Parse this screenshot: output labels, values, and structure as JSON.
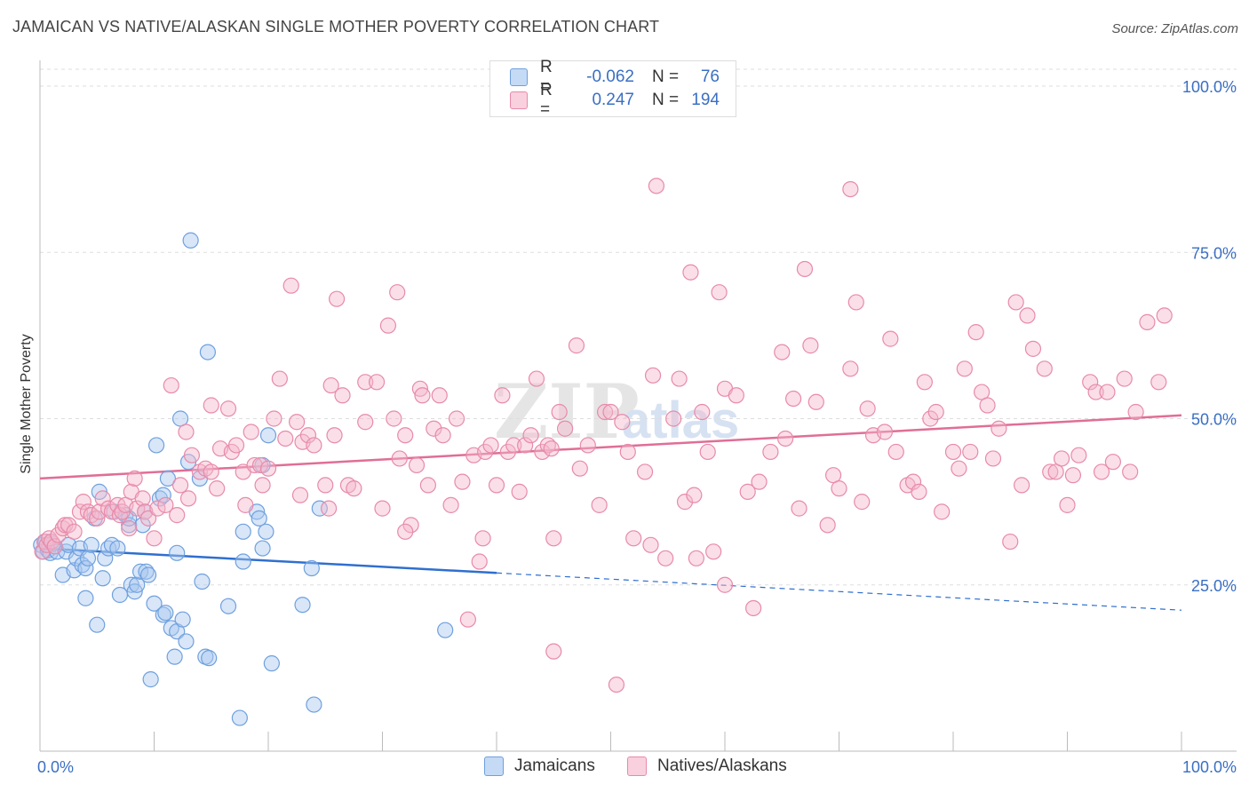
{
  "title": "JAMAICAN VS NATIVE/ALASKAN SINGLE MOTHER POVERTY CORRELATION CHART",
  "source": "Source: ZipAtlas.com",
  "watermark": "ZIPatlas",
  "legend": {
    "rows": [
      {
        "r_label": "R =",
        "r_value": "-0.062",
        "n_label": "N =",
        "n_value": "76",
        "color": "#a8c8f0"
      },
      {
        "r_label": "R =",
        "r_value": "0.247",
        "n_label": "N =",
        "n_value": "194",
        "color": "#f5b8cc"
      }
    ]
  },
  "chart_data": {
    "type": "scatter",
    "title": "JAMAICAN VS NATIVE/ALASKAN SINGLE MOTHER POVERTY CORRELATION CHART",
    "xlabel": "",
    "ylabel": "Single Mother Poverty",
    "xlim": [
      0,
      100
    ],
    "ylim": [
      0,
      100
    ],
    "x_tick_labels": [
      "0.0%",
      "100.0%"
    ],
    "y_tick_labels": [
      "25.0%",
      "50.0%",
      "75.0%",
      "100.0%"
    ],
    "y_ticks": [
      25,
      50,
      75,
      100
    ],
    "grid": true,
    "legend_position": "bottom",
    "series": [
      {
        "name": "Jamaicans",
        "color": "#6fa0de",
        "fill": "#a8c8f0",
        "trend": {
          "x": [
            0,
            40,
            100
          ],
          "y": [
            30.5,
            26.8,
            21.2
          ],
          "solid_until": 40
        },
        "points": [
          [
            0.1,
            31
          ],
          [
            0.3,
            30
          ],
          [
            0.5,
            31.5
          ],
          [
            0.7,
            30.2
          ],
          [
            0.9,
            29.8
          ],
          [
            1.1,
            31.2
          ],
          [
            1.5,
            30
          ],
          [
            2,
            26.5
          ],
          [
            2.3,
            30
          ],
          [
            2.5,
            31
          ],
          [
            3,
            27.2
          ],
          [
            3.2,
            29
          ],
          [
            3.5,
            30.5
          ],
          [
            3.7,
            28
          ],
          [
            4,
            27.5
          ],
          [
            4,
            23
          ],
          [
            4.2,
            29
          ],
          [
            4.5,
            31
          ],
          [
            4.8,
            35
          ],
          [
            5,
            19
          ],
          [
            5.2,
            39
          ],
          [
            5.5,
            26
          ],
          [
            5.7,
            29
          ],
          [
            6,
            30.5
          ],
          [
            6.3,
            31
          ],
          [
            6.5,
            36
          ],
          [
            6.8,
            30.5
          ],
          [
            7,
            23.5
          ],
          [
            7.5,
            35.5
          ],
          [
            7.8,
            34
          ],
          [
            7.8,
            35
          ],
          [
            8,
            25
          ],
          [
            8.3,
            24
          ],
          [
            8.5,
            25
          ],
          [
            8.8,
            27
          ],
          [
            9,
            34
          ],
          [
            9.2,
            36
          ],
          [
            9.3,
            27
          ],
          [
            9.5,
            26.5
          ],
          [
            9.7,
            10.8
          ],
          [
            10,
            22.2
          ],
          [
            10.2,
            46
          ],
          [
            10.5,
            38
          ],
          [
            10.8,
            38.5
          ],
          [
            10.8,
            20.5
          ],
          [
            11,
            20.8
          ],
          [
            11.2,
            41
          ],
          [
            11.5,
            18.5
          ],
          [
            11.8,
            14.2
          ],
          [
            12,
            18
          ],
          [
            12,
            29.8
          ],
          [
            12.3,
            50
          ],
          [
            12.5,
            19.8
          ],
          [
            12.8,
            16.5
          ],
          [
            13,
            43.5
          ],
          [
            13.2,
            76.8
          ],
          [
            14,
            41
          ],
          [
            14.2,
            25.5
          ],
          [
            14.5,
            14.2
          ],
          [
            14.7,
            60
          ],
          [
            14.8,
            14
          ],
          [
            16.5,
            21.8
          ],
          [
            17.5,
            5
          ],
          [
            17.8,
            33
          ],
          [
            17.8,
            28.5
          ],
          [
            19,
            36
          ],
          [
            19.2,
            35
          ],
          [
            19.5,
            30.5
          ],
          [
            19.5,
            43
          ],
          [
            19.8,
            33
          ],
          [
            20,
            47.5
          ],
          [
            20.3,
            13.2
          ],
          [
            23,
            22
          ],
          [
            23.8,
            27.5
          ],
          [
            24,
            7
          ],
          [
            24.5,
            36.5
          ],
          [
            35.5,
            18.2
          ]
        ]
      },
      {
        "name": "Natives/Alaskans",
        "color": "#e88aaa",
        "fill": "#f5b8cc",
        "trend": {
          "x": [
            0,
            100
          ],
          "y": [
            41,
            50.5
          ]
        },
        "points": [
          [
            0.2,
            30
          ],
          [
            0.4,
            31.5
          ],
          [
            0.6,
            31
          ],
          [
            0.8,
            32
          ],
          [
            1,
            31.5
          ],
          [
            1.3,
            30.8
          ],
          [
            1.6,
            32.5
          ],
          [
            2,
            33.5
          ],
          [
            2.2,
            34
          ],
          [
            2.5,
            34
          ],
          [
            3,
            33
          ],
          [
            3.5,
            36
          ],
          [
            3.8,
            37.5
          ],
          [
            4.2,
            36
          ],
          [
            4.5,
            35.5
          ],
          [
            5,
            35
          ],
          [
            5.2,
            36
          ],
          [
            5.5,
            38
          ],
          [
            6,
            36.5
          ],
          [
            6.3,
            36
          ],
          [
            6.8,
            37
          ],
          [
            7,
            35.5
          ],
          [
            7.2,
            36
          ],
          [
            7.5,
            37
          ],
          [
            7.8,
            33.5
          ],
          [
            8,
            39
          ],
          [
            8.3,
            41
          ],
          [
            8.5,
            36.5
          ],
          [
            9,
            38
          ],
          [
            9.2,
            36
          ],
          [
            9.5,
            35
          ],
          [
            10,
            32
          ],
          [
            10.3,
            36.5
          ],
          [
            11,
            37
          ],
          [
            11.5,
            55
          ],
          [
            12,
            35.5
          ],
          [
            12.3,
            40
          ],
          [
            12.8,
            48
          ],
          [
            13,
            38
          ],
          [
            13.3,
            44.5
          ],
          [
            14,
            42
          ],
          [
            14.5,
            42.5
          ],
          [
            15,
            52
          ],
          [
            15,
            42
          ],
          [
            15.5,
            39.5
          ],
          [
            15.8,
            45.5
          ],
          [
            16.5,
            51.5
          ],
          [
            16.8,
            45
          ],
          [
            17.2,
            46
          ],
          [
            17.8,
            42
          ],
          [
            18,
            37
          ],
          [
            18.5,
            48
          ],
          [
            18.8,
            43
          ],
          [
            19.3,
            43
          ],
          [
            19.5,
            40
          ],
          [
            20,
            42.5
          ],
          [
            20.5,
            50
          ],
          [
            21,
            56
          ],
          [
            21.5,
            47
          ],
          [
            22,
            70
          ],
          [
            22.5,
            49.5
          ],
          [
            22.8,
            38.5
          ],
          [
            23,
            46.5
          ],
          [
            23.5,
            47.5
          ],
          [
            24,
            46
          ],
          [
            25,
            40
          ],
          [
            25.3,
            36.5
          ],
          [
            25.5,
            55
          ],
          [
            25.8,
            47.5
          ],
          [
            26,
            68
          ],
          [
            26.5,
            53.5
          ],
          [
            27,
            40
          ],
          [
            27.5,
            39.5
          ],
          [
            28.5,
            49.5
          ],
          [
            28.5,
            55.5
          ],
          [
            29.5,
            55.5
          ],
          [
            30,
            36.5
          ],
          [
            30.5,
            64
          ],
          [
            31,
            50
          ],
          [
            31.3,
            69
          ],
          [
            31.5,
            44
          ],
          [
            32,
            47.5
          ],
          [
            32.5,
            34
          ],
          [
            33,
            43
          ],
          [
            33.3,
            54.5
          ],
          [
            33.5,
            53.5
          ],
          [
            34,
            40
          ],
          [
            34.5,
            48.5
          ],
          [
            35,
            53.5
          ],
          [
            35.3,
            47.5
          ],
          [
            36,
            37
          ],
          [
            36.5,
            50
          ],
          [
            37,
            40.5
          ],
          [
            38,
            44.5
          ],
          [
            38.5,
            28.5
          ],
          [
            38.8,
            32
          ],
          [
            39,
            45
          ],
          [
            39.5,
            46
          ],
          [
            40,
            40
          ],
          [
            40.5,
            53.5
          ],
          [
            41,
            45
          ],
          [
            41.5,
            46
          ],
          [
            42,
            39
          ],
          [
            42.5,
            46
          ],
          [
            43,
            47.5
          ],
          [
            43.5,
            56
          ],
          [
            44,
            45
          ],
          [
            44.5,
            46
          ],
          [
            44.8,
            45.5
          ],
          [
            45,
            32
          ],
          [
            45.5,
            51
          ],
          [
            46,
            48.5
          ],
          [
            47,
            61
          ],
          [
            47.3,
            42.5
          ],
          [
            48,
            46
          ],
          [
            49,
            37
          ],
          [
            49.5,
            51
          ],
          [
            50,
            51
          ],
          [
            51,
            49.5
          ],
          [
            51.5,
            45
          ],
          [
            52,
            32
          ],
          [
            53,
            42
          ],
          [
            53.5,
            31
          ],
          [
            53.7,
            56.5
          ],
          [
            54,
            85
          ],
          [
            54.8,
            29
          ],
          [
            55.5,
            50
          ],
          [
            56,
            56
          ],
          [
            56.5,
            37.5
          ],
          [
            57,
            72
          ],
          [
            57.3,
            38.5
          ],
          [
            58,
            51
          ],
          [
            58.5,
            45
          ],
          [
            59,
            30
          ],
          [
            59.5,
            69
          ],
          [
            60,
            54.5
          ],
          [
            60,
            25
          ],
          [
            61,
            53.5
          ],
          [
            62,
            39
          ],
          [
            62.5,
            21.5
          ],
          [
            63,
            40.5
          ],
          [
            64,
            45
          ],
          [
            65,
            60
          ],
          [
            65.3,
            47
          ],
          [
            66,
            53
          ],
          [
            66.5,
            36.5
          ],
          [
            67,
            72.5
          ],
          [
            67.5,
            61
          ],
          [
            68,
            52.5
          ],
          [
            69,
            34
          ],
          [
            69.5,
            41.5
          ],
          [
            70,
            39.5
          ],
          [
            71,
            57.5
          ],
          [
            71.5,
            67.5
          ],
          [
            72,
            37.5
          ],
          [
            72.5,
            51.5
          ],
          [
            73,
            47.5
          ],
          [
            74,
            48
          ],
          [
            74.5,
            62
          ],
          [
            75,
            45
          ],
          [
            76,
            40
          ],
          [
            76.5,
            40.5
          ],
          [
            77,
            39
          ],
          [
            77.5,
            55.5
          ],
          [
            78,
            50
          ],
          [
            78.5,
            51
          ],
          [
            79,
            36
          ],
          [
            80,
            45
          ],
          [
            80.5,
            42.5
          ],
          [
            81,
            57.5
          ],
          [
            81.5,
            45
          ],
          [
            82,
            63
          ],
          [
            82.5,
            54
          ],
          [
            83,
            52
          ],
          [
            83.5,
            44
          ],
          [
            84,
            48.5
          ],
          [
            85,
            31.5
          ],
          [
            85.5,
            67.5
          ],
          [
            86,
            40
          ],
          [
            86.5,
            65.5
          ],
          [
            87,
            60.5
          ],
          [
            88,
            57.5
          ],
          [
            88.5,
            42
          ],
          [
            89,
            42
          ],
          [
            89.5,
            44
          ],
          [
            90,
            37
          ],
          [
            90.5,
            41.5
          ],
          [
            91,
            44.5
          ],
          [
            92,
            55.5
          ],
          [
            92.5,
            54
          ],
          [
            93,
            42
          ],
          [
            93.5,
            54
          ],
          [
            94,
            43.5
          ],
          [
            95,
            56
          ],
          [
            95.5,
            42
          ],
          [
            96,
            51
          ],
          [
            97,
            64.5
          ],
          [
            98,
            55.5
          ],
          [
            98.5,
            65.5
          ],
          [
            45,
            15
          ],
          [
            50.5,
            10
          ],
          [
            71,
            84.5
          ],
          [
            32,
            33
          ],
          [
            37.5,
            19.8
          ],
          [
            57.5,
            29
          ]
        ]
      }
    ]
  }
}
